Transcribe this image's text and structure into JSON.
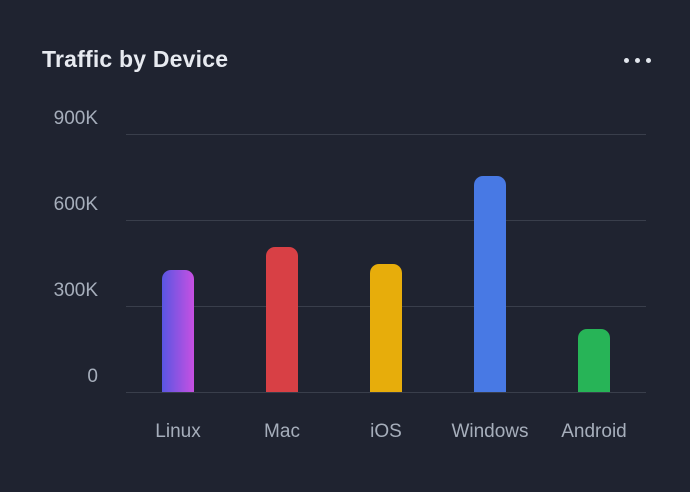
{
  "card": {
    "title": "Traffic by Device",
    "menu_icon": "ellipsis-horizontal"
  },
  "theme": {
    "background": "#1F2330",
    "title_color": "#E7EAF0",
    "axis_label_color": "#A6AEBB",
    "gridline_color": "#393E4B",
    "icon_color": "#E2E6ED"
  },
  "chart_data": {
    "type": "bar",
    "title": "Traffic by Device",
    "categories": [
      "Linux",
      "Mac",
      "iOS",
      "Windows",
      "Android"
    ],
    "values": [
      425000,
      505000,
      445000,
      755000,
      220000
    ],
    "bar_colors": [
      "linear-gradient(90deg, #5956E2, #C750E2)",
      "#D84045",
      "#E7AD0B",
      "#4879E4",
      "#27B457"
    ],
    "yticks": [
      {
        "value": 0,
        "label": "0"
      },
      {
        "value": 300000,
        "label": "300K"
      },
      {
        "value": 600000,
        "label": "600K"
      },
      {
        "value": 900000,
        "label": "900K"
      }
    ],
    "ylim": [
      0,
      900000
    ],
    "xlabel": "",
    "ylabel": "",
    "grid": true,
    "legend": false
  }
}
